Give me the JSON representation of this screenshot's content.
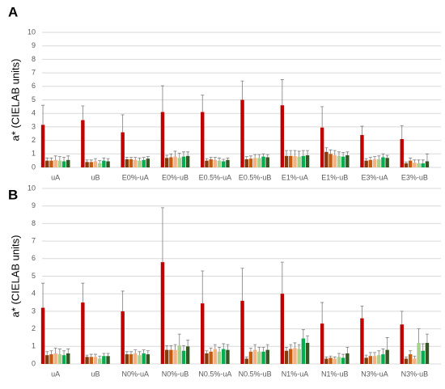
{
  "chart_data": [
    {
      "type": "bar",
      "label": "A",
      "ylabel": "a* (CIELAB units)",
      "categories": [
        "uA",
        "uB",
        "E0%-uA",
        "E0%-uB",
        "E0.5%-uA",
        "E0.5%-uB",
        "E1%-uA",
        "E1%-uB",
        "E3%-uA",
        "E3%-uB"
      ],
      "ylim": [
        0,
        10
      ],
      "yticks": [
        0,
        1,
        2,
        3,
        4,
        5,
        6,
        7,
        8,
        9,
        10
      ],
      "grid": true,
      "series": [
        {
          "color": "#c00000",
          "values": [
            3.15,
            3.5,
            2.6,
            4.1,
            4.1,
            5.0,
            4.6,
            2.95,
            2.4,
            2.1
          ],
          "errors": [
            1.45,
            1.05,
            1.3,
            1.95,
            1.25,
            1.4,
            1.9,
            1.55,
            0.65,
            1.0
          ]
        },
        {
          "color": "#843c0c",
          "values": [
            0.5,
            0.4,
            0.6,
            0.7,
            0.5,
            0.6,
            0.85,
            1.15,
            0.5,
            0.3
          ],
          "errors": [
            0.2,
            0.15,
            0.15,
            0.2,
            0.15,
            0.2,
            0.4,
            0.3,
            0.15,
            0.1
          ]
        },
        {
          "color": "#c55a11",
          "values": [
            0.5,
            0.4,
            0.6,
            0.75,
            0.6,
            0.65,
            0.85,
            1.0,
            0.55,
            0.5
          ],
          "errors": [
            0.2,
            0.15,
            0.15,
            0.25,
            0.15,
            0.2,
            0.4,
            0.3,
            0.2,
            0.2
          ]
        },
        {
          "color": "#f4b183",
          "values": [
            0.55,
            0.45,
            0.55,
            0.8,
            0.55,
            0.7,
            0.85,
            0.9,
            0.6,
            0.35
          ],
          "errors": [
            0.3,
            0.2,
            0.2,
            0.4,
            0.2,
            0.25,
            0.4,
            0.35,
            0.2,
            0.2
          ]
        },
        {
          "color": "#a9d18e",
          "values": [
            0.5,
            0.3,
            0.5,
            0.7,
            0.5,
            0.7,
            0.8,
            0.85,
            0.6,
            0.3
          ],
          "errors": [
            0.3,
            0.2,
            0.2,
            0.35,
            0.2,
            0.25,
            0.4,
            0.3,
            0.25,
            0.25
          ]
        },
        {
          "color": "#00b050",
          "values": [
            0.45,
            0.5,
            0.55,
            0.8,
            0.45,
            0.8,
            0.85,
            0.8,
            0.75,
            0.3
          ],
          "errors": [
            0.3,
            0.2,
            0.2,
            0.35,
            0.15,
            0.2,
            0.4,
            0.3,
            0.25,
            0.25
          ]
        },
        {
          "color": "#375623",
          "values": [
            0.55,
            0.45,
            0.65,
            0.85,
            0.55,
            0.75,
            0.9,
            0.9,
            0.7,
            0.45
          ],
          "errors": [
            0.3,
            0.2,
            0.15,
            0.3,
            0.15,
            0.2,
            0.35,
            0.25,
            0.2,
            0.55
          ]
        }
      ]
    },
    {
      "type": "bar",
      "label": "B",
      "ylabel": "a* (CIELAB units)",
      "categories": [
        "uA",
        "uB",
        "N0%-uA",
        "N0%-uB",
        "N0.5%-uA",
        "N0.5%-uB",
        "N1%-uA",
        "N1%-uB",
        "N3%-uA",
        "N3%-uB"
      ],
      "ylim": [
        0,
        10
      ],
      "yticks": [
        0,
        1,
        2,
        3,
        4,
        5,
        6,
        7,
        8,
        9,
        10
      ],
      "grid": true,
      "series": [
        {
          "color": "#c00000",
          "values": [
            3.2,
            3.5,
            3.0,
            5.8,
            3.45,
            3.6,
            4.0,
            2.3,
            2.6,
            2.25
          ],
          "errors": [
            1.4,
            1.1,
            1.15,
            3.1,
            1.85,
            1.85,
            1.8,
            1.2,
            0.7,
            0.75
          ]
        },
        {
          "color": "#843c0c",
          "values": [
            0.5,
            0.4,
            0.55,
            0.8,
            0.6,
            0.3,
            0.75,
            0.3,
            0.35,
            0.3
          ],
          "errors": [
            0.2,
            0.1,
            0.15,
            0.25,
            0.15,
            0.1,
            0.2,
            0.1,
            0.15,
            0.1
          ]
        },
        {
          "color": "#c55a11",
          "values": [
            0.55,
            0.4,
            0.55,
            0.8,
            0.7,
            0.7,
            0.85,
            0.35,
            0.45,
            0.55
          ],
          "errors": [
            0.2,
            0.15,
            0.15,
            0.25,
            0.2,
            0.2,
            0.25,
            0.1,
            0.2,
            0.2
          ]
        },
        {
          "color": "#f4b183",
          "values": [
            0.6,
            0.4,
            0.6,
            0.8,
            0.85,
            0.8,
            0.9,
            0.3,
            0.45,
            0.3
          ],
          "errors": [
            0.3,
            0.15,
            0.2,
            0.3,
            0.25,
            0.3,
            0.3,
            0.1,
            0.2,
            0.15
          ]
        },
        {
          "color": "#a9d18e",
          "values": [
            0.55,
            0.3,
            0.5,
            1.05,
            0.7,
            0.7,
            0.85,
            0.4,
            0.5,
            1.2
          ],
          "errors": [
            0.3,
            0.15,
            0.2,
            0.65,
            0.25,
            0.25,
            0.25,
            0.2,
            0.25,
            0.8
          ]
        },
        {
          "color": "#00b050",
          "values": [
            0.5,
            0.45,
            0.6,
            0.75,
            0.85,
            0.7,
            1.45,
            0.35,
            0.55,
            0.75
          ],
          "errors": [
            0.25,
            0.15,
            0.2,
            0.3,
            0.3,
            0.25,
            0.5,
            0.2,
            0.3,
            0.4
          ]
        },
        {
          "color": "#375623",
          "values": [
            0.6,
            0.45,
            0.55,
            1.0,
            0.8,
            0.8,
            1.2,
            0.6,
            0.8,
            1.2
          ],
          "errors": [
            0.25,
            0.15,
            0.2,
            0.35,
            0.3,
            0.3,
            0.4,
            0.35,
            0.7,
            0.5
          ]
        }
      ]
    }
  ]
}
